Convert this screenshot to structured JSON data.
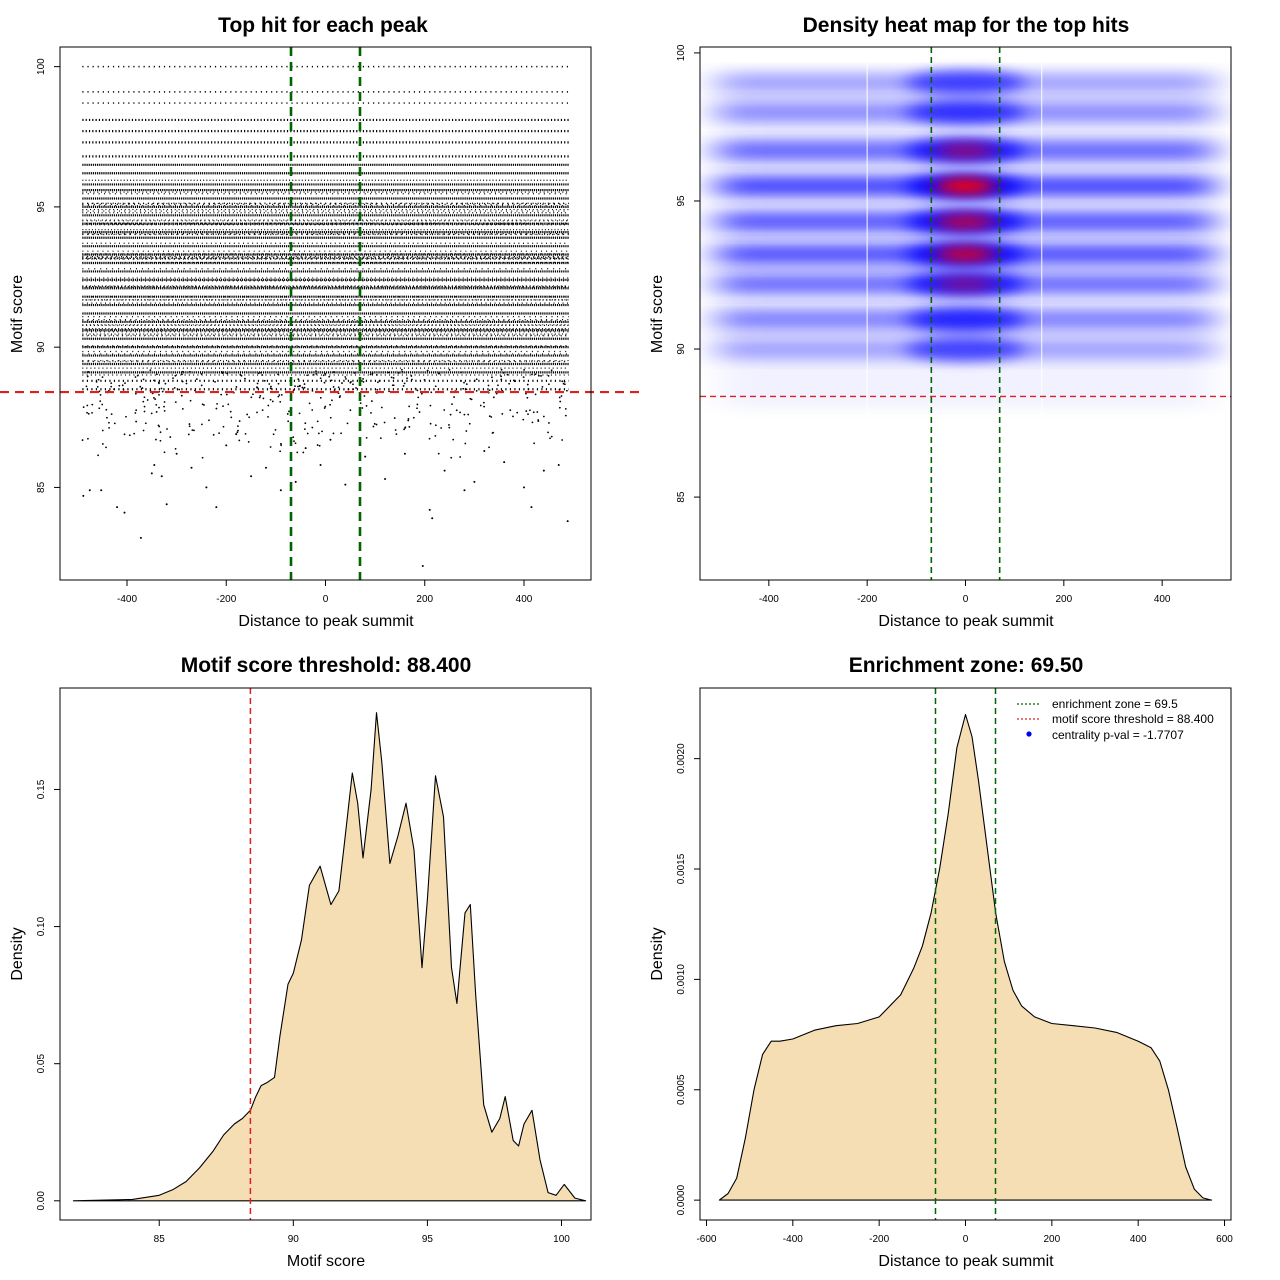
{
  "colors": {
    "fill": "#F5DEB3",
    "green": "#006400",
    "red": "#E02020",
    "heat_low": "#0000FF",
    "heat_high": "#FF0000"
  },
  "chart_data": [
    {
      "id": "scatter",
      "type": "scatter",
      "title": "Top hit for each peak",
      "xlabel": "Distance to peak summit",
      "ylabel": "Motif score",
      "xlim": [
        -535,
        535
      ],
      "ylim": [
        81.7,
        100.7
      ],
      "xticks": [
        -400,
        -200,
        0,
        200,
        400
      ],
      "yticks": [
        85,
        90,
        95,
        100
      ],
      "vlines": [
        -69.5,
        69.5
      ],
      "hline": 88.4,
      "x_range": [
        -490,
        490
      ],
      "score_levels": [
        100,
        99.1,
        98.7,
        98.1,
        97.7,
        97.3,
        96.8,
        96.5,
        96.2,
        95.8,
        95.6,
        95.3,
        95,
        94.7,
        94.4,
        94.1,
        93.9,
        93.6,
        93.3,
        93,
        92.7,
        92.4,
        92.1,
        91.8,
        91.5,
        91.2,
        90.9,
        90.6,
        90.3,
        90,
        89.7,
        89.4,
        89.1,
        88.8,
        88.5
      ],
      "sparse_points": [
        [
          -488,
          84.7
        ],
        [
          -475,
          84.9
        ],
        [
          -452,
          84.9
        ],
        [
          -420,
          84.3
        ],
        [
          -405,
          84.1
        ],
        [
          -372,
          83.2
        ],
        [
          -350,
          85.5
        ],
        [
          -345,
          85.8
        ],
        [
          -330,
          85.4
        ],
        [
          -320,
          84.4
        ],
        [
          -300,
          86.2
        ],
        [
          -270,
          85.7
        ],
        [
          -240,
          85
        ],
        [
          -220,
          84.3
        ],
        [
          -200,
          86.5
        ],
        [
          -180,
          86.9
        ],
        [
          -150,
          85.4
        ],
        [
          -120,
          85.7
        ],
        [
          -90,
          84.9
        ],
        [
          -60,
          85.2
        ],
        [
          -40,
          86.4
        ],
        [
          -10,
          85.8
        ],
        [
          10,
          86.7
        ],
        [
          40,
          85.1
        ],
        [
          80,
          86.1
        ],
        [
          120,
          85.3
        ],
        [
          160,
          86.2
        ],
        [
          196,
          82.2
        ],
        [
          210,
          84.2
        ],
        [
          215,
          83.9
        ],
        [
          240,
          85.6
        ],
        [
          280,
          84.9
        ],
        [
          300,
          85.2
        ],
        [
          320,
          86.3
        ],
        [
          360,
          85.9
        ],
        [
          400,
          85
        ],
        [
          415,
          84.3
        ],
        [
          440,
          85.6
        ],
        [
          470,
          85.8
        ],
        [
          488,
          83.8
        ]
      ]
    },
    {
      "id": "heatmap",
      "type": "heatmap",
      "title": "Density heat map for the top hits",
      "xlabel": "Distance to peak summit",
      "ylabel": "Motif score",
      "xlim": [
        -540,
        540
      ],
      "ylim": [
        82.2,
        100.2
      ],
      "xticks": [
        -400,
        -200,
        0,
        200,
        400
      ],
      "yticks": [
        85,
        90,
        95,
        100
      ],
      "vlines": [
        -69.5,
        69.5
      ],
      "hline": 88.4,
      "bands": [
        {
          "y": 99,
          "w": 0.35
        },
        {
          "y": 98,
          "w": 0.45
        },
        {
          "y": 96.7,
          "w": 0.75
        },
        {
          "y": 95.5,
          "w": 1.0
        },
        {
          "y": 94.3,
          "w": 0.85
        },
        {
          "y": 93.2,
          "w": 0.9
        },
        {
          "y": 92.2,
          "w": 0.7
        },
        {
          "y": 91,
          "w": 0.55
        },
        {
          "y": 90,
          "w": 0.3
        }
      ]
    },
    {
      "id": "score_density",
      "type": "area",
      "title": "Motif score threshold: 88.400",
      "xlabel": "Motif score",
      "ylabel": "Density",
      "xlim": [
        81.3,
        101.1
      ],
      "ylim": [
        -0.007,
        0.187
      ],
      "xticks": [
        85,
        90,
        95,
        100
      ],
      "yticks": [
        0,
        0.05,
        0.1,
        0.15
      ],
      "ytick_labels": [
        "0.00",
        "0.05",
        "0.10",
        "0.15"
      ],
      "vline": 88.4,
      "x": [
        81.8,
        84,
        85,
        85.5,
        86,
        86.5,
        87,
        87.4,
        87.8,
        88.1,
        88.4,
        88.6,
        88.8,
        89,
        89.3,
        89.5,
        89.8,
        90,
        90.3,
        90.6,
        91,
        91.4,
        91.7,
        91.9,
        92.2,
        92.4,
        92.6,
        92.9,
        93.1,
        93.3,
        93.6,
        93.9,
        94.2,
        94.5,
        94.8,
        95,
        95.3,
        95.6,
        95.9,
        96.1,
        96.4,
        96.6,
        96.8,
        97.1,
        97.4,
        97.7,
        97.9,
        98.2,
        98.4,
        98.6,
        98.9,
        99.2,
        99.5,
        99.8,
        100.1,
        100.5,
        100.9
      ],
      "y": [
        0,
        0.0005,
        0.002,
        0.004,
        0.007,
        0.012,
        0.018,
        0.024,
        0.028,
        0.03,
        0.033,
        0.038,
        0.042,
        0.043,
        0.045,
        0.06,
        0.079,
        0.083,
        0.095,
        0.115,
        0.122,
        0.108,
        0.113,
        0.13,
        0.156,
        0.145,
        0.125,
        0.15,
        0.178,
        0.16,
        0.123,
        0.133,
        0.145,
        0.128,
        0.085,
        0.11,
        0.155,
        0.14,
        0.085,
        0.072,
        0.105,
        0.108,
        0.075,
        0.035,
        0.025,
        0.03,
        0.038,
        0.022,
        0.02,
        0.028,
        0.033,
        0.015,
        0.003,
        0.002,
        0.006,
        0.001,
        0
      ]
    },
    {
      "id": "distance_density",
      "type": "area",
      "title": "Enrichment zone: 69.50",
      "xlabel": "Distance to peak summit",
      "ylabel": "Density",
      "xlim": [
        -615,
        615
      ],
      "ylim": [
        -9e-05,
        0.00232
      ],
      "xticks": [
        -600,
        -400,
        -200,
        0,
        200,
        400,
        600
      ],
      "yticks": [
        0,
        0.0005,
        0.001,
        0.0015,
        0.002
      ],
      "ytick_labels": [
        "0.0000",
        "0.0005",
        "0.0010",
        "0.0015",
        "0.0020"
      ],
      "vlines": [
        -69.5,
        69.5
      ],
      "x": [
        -570,
        -550,
        -530,
        -510,
        -490,
        -470,
        -450,
        -430,
        -400,
        -350,
        -300,
        -250,
        -200,
        -150,
        -120,
        -100,
        -80,
        -60,
        -40,
        -20,
        0,
        15,
        30,
        50,
        70,
        90,
        110,
        130,
        160,
        200,
        250,
        300,
        350,
        400,
        430,
        450,
        470,
        490,
        510,
        530,
        550,
        570
      ],
      "y": [
        0,
        3e-05,
        0.0001,
        0.00028,
        0.0005,
        0.00066,
        0.00072,
        0.00072,
        0.00073,
        0.00077,
        0.00079,
        0.0008,
        0.00083,
        0.00093,
        0.00105,
        0.00115,
        0.0013,
        0.0015,
        0.00175,
        0.00205,
        0.0022,
        0.0021,
        0.0019,
        0.0016,
        0.0013,
        0.00108,
        0.00095,
        0.00088,
        0.00083,
        0.0008,
        0.00079,
        0.00078,
        0.00076,
        0.00072,
        0.00069,
        0.00063,
        0.0005,
        0.00033,
        0.00015,
        5e-05,
        1e-05,
        0
      ],
      "legend": {
        "items": [
          {
            "label": "enrichment zone = 69.5",
            "kind": "line",
            "color": "#006400"
          },
          {
            "label": "motif score threshold = 88.400",
            "kind": "line",
            "color": "#E02020"
          },
          {
            "label": "centrality p-val = -1.7707",
            "kind": "point",
            "color": "#0000FF"
          }
        ],
        "position": "top-right"
      }
    }
  ]
}
